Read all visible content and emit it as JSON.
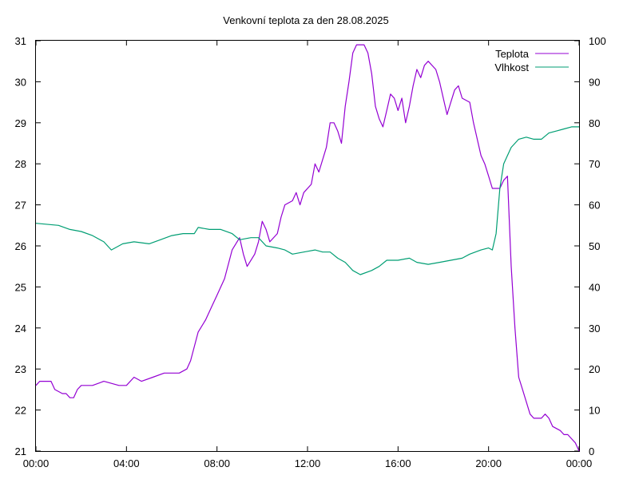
{
  "chart_data": {
    "type": "line",
    "title": "Venkovní teplota za den 28.08.2025",
    "x_ticks": [
      "00:00",
      "04:00",
      "08:00",
      "12:00",
      "16:00",
      "20:00",
      "00:00"
    ],
    "xlim": [
      "00:00",
      "24:00"
    ],
    "y_left": {
      "ylim": [
        21,
        31
      ],
      "ticks": [
        "21",
        "22",
        "23",
        "24",
        "25",
        "26",
        "27",
        "28",
        "29",
        "30",
        "31"
      ]
    },
    "y_right": {
      "ylim": [
        0,
        100
      ],
      "ticks": [
        "0",
        "10",
        "20",
        "30",
        "40",
        "50",
        "60",
        "70",
        "80",
        "90",
        "100"
      ]
    },
    "legend_position": "top-right",
    "grid": false,
    "series": [
      {
        "name": "Teplota",
        "axis": "left",
        "color": "#9400d3",
        "points": [
          [
            "00:00",
            22.6
          ],
          [
            "00:10",
            22.7
          ],
          [
            "00:40",
            22.7
          ],
          [
            "00:50",
            22.5
          ],
          [
            "01:10",
            22.4
          ],
          [
            "01:20",
            22.4
          ],
          [
            "01:30",
            22.3
          ],
          [
            "01:40",
            22.3
          ],
          [
            "01:50",
            22.5
          ],
          [
            "02:00",
            22.6
          ],
          [
            "02:30",
            22.6
          ],
          [
            "03:00",
            22.7
          ],
          [
            "03:40",
            22.6
          ],
          [
            "04:00",
            22.6
          ],
          [
            "04:20",
            22.8
          ],
          [
            "04:40",
            22.7
          ],
          [
            "05:10",
            22.8
          ],
          [
            "05:40",
            22.9
          ],
          [
            "06:20",
            22.9
          ],
          [
            "06:40",
            23.0
          ],
          [
            "06:50",
            23.2
          ],
          [
            "07:10",
            23.9
          ],
          [
            "07:30",
            24.2
          ],
          [
            "07:40",
            24.4
          ],
          [
            "08:00",
            24.8
          ],
          [
            "08:20",
            25.2
          ],
          [
            "08:40",
            25.9
          ],
          [
            "09:00",
            26.2
          ],
          [
            "09:10",
            25.8
          ],
          [
            "09:20",
            25.5
          ],
          [
            "09:40",
            25.8
          ],
          [
            "09:50",
            26.1
          ],
          [
            "10:00",
            26.6
          ],
          [
            "10:10",
            26.4
          ],
          [
            "10:20",
            26.1
          ],
          [
            "10:40",
            26.3
          ],
          [
            "10:50",
            26.7
          ],
          [
            "11:00",
            27.0
          ],
          [
            "11:20",
            27.1
          ],
          [
            "11:30",
            27.3
          ],
          [
            "11:40",
            27.0
          ],
          [
            "11:50",
            27.3
          ],
          [
            "12:10",
            27.5
          ],
          [
            "12:20",
            28.0
          ],
          [
            "12:30",
            27.8
          ],
          [
            "12:50",
            28.4
          ],
          [
            "13:00",
            29.0
          ],
          [
            "13:10",
            29.0
          ],
          [
            "13:20",
            28.8
          ],
          [
            "13:30",
            28.5
          ],
          [
            "13:40",
            29.4
          ],
          [
            "13:50",
            30.0
          ],
          [
            "14:00",
            30.7
          ],
          [
            "14:10",
            30.9
          ],
          [
            "14:30",
            30.9
          ],
          [
            "14:40",
            30.7
          ],
          [
            "14:50",
            30.2
          ],
          [
            "15:00",
            29.4
          ],
          [
            "15:10",
            29.1
          ],
          [
            "15:20",
            28.9
          ],
          [
            "15:30",
            29.3
          ],
          [
            "15:40",
            29.7
          ],
          [
            "15:50",
            29.6
          ],
          [
            "16:00",
            29.3
          ],
          [
            "16:10",
            29.6
          ],
          [
            "16:20",
            29.0
          ],
          [
            "16:30",
            29.4
          ],
          [
            "16:40",
            29.9
          ],
          [
            "16:50",
            30.3
          ],
          [
            "17:00",
            30.1
          ],
          [
            "17:10",
            30.4
          ],
          [
            "17:20",
            30.5
          ],
          [
            "17:40",
            30.3
          ],
          [
            "17:50",
            30.0
          ],
          [
            "18:00",
            29.6
          ],
          [
            "18:10",
            29.2
          ],
          [
            "18:20",
            29.5
          ],
          [
            "18:30",
            29.8
          ],
          [
            "18:40",
            29.9
          ],
          [
            "18:50",
            29.6
          ],
          [
            "19:10",
            29.5
          ],
          [
            "19:20",
            29.0
          ],
          [
            "19:40",
            28.2
          ],
          [
            "19:50",
            28.0
          ],
          [
            "20:00",
            27.7
          ],
          [
            "20:10",
            27.4
          ],
          [
            "20:20",
            27.4
          ],
          [
            "20:30",
            27.4
          ],
          [
            "20:40",
            27.6
          ],
          [
            "20:50",
            27.7
          ],
          [
            "21:00",
            25.5
          ],
          [
            "21:10",
            24.0
          ],
          [
            "21:20",
            22.8
          ],
          [
            "21:30",
            22.5
          ],
          [
            "21:40",
            22.2
          ],
          [
            "21:50",
            21.9
          ],
          [
            "22:00",
            21.8
          ],
          [
            "22:20",
            21.8
          ],
          [
            "22:30",
            21.9
          ],
          [
            "22:40",
            21.8
          ],
          [
            "22:50",
            21.6
          ],
          [
            "23:10",
            21.5
          ],
          [
            "23:20",
            21.4
          ],
          [
            "23:30",
            21.4
          ],
          [
            "23:40",
            21.3
          ],
          [
            "23:50",
            21.2
          ],
          [
            "24:00",
            21.0
          ]
        ]
      },
      {
        "name": "Vlhkost",
        "axis": "right",
        "color": "#009e73",
        "points": [
          [
            "00:00",
            55.5
          ],
          [
            "01:00",
            55.0
          ],
          [
            "01:30",
            54.0
          ],
          [
            "02:00",
            53.5
          ],
          [
            "02:30",
            52.5
          ],
          [
            "03:00",
            51.0
          ],
          [
            "03:20",
            49.0
          ],
          [
            "03:50",
            50.5
          ],
          [
            "04:20",
            51.0
          ],
          [
            "05:00",
            50.5
          ],
          [
            "05:30",
            51.5
          ],
          [
            "06:00",
            52.5
          ],
          [
            "06:30",
            53.0
          ],
          [
            "07:00",
            53.0
          ],
          [
            "07:10",
            54.5
          ],
          [
            "07:40",
            54.0
          ],
          [
            "08:10",
            54.0
          ],
          [
            "08:40",
            53.0
          ],
          [
            "09:00",
            51.5
          ],
          [
            "09:30",
            52.0
          ],
          [
            "09:50",
            52.0
          ],
          [
            "10:10",
            50.0
          ],
          [
            "10:40",
            49.5
          ],
          [
            "11:00",
            49.0
          ],
          [
            "11:20",
            48.0
          ],
          [
            "11:50",
            48.5
          ],
          [
            "12:20",
            49.0
          ],
          [
            "12:40",
            48.5
          ],
          [
            "13:00",
            48.5
          ],
          [
            "13:20",
            47.0
          ],
          [
            "13:40",
            46.0
          ],
          [
            "14:00",
            44.0
          ],
          [
            "14:20",
            43.0
          ],
          [
            "14:50",
            44.0
          ],
          [
            "15:10",
            45.0
          ],
          [
            "15:30",
            46.5
          ],
          [
            "16:00",
            46.5
          ],
          [
            "16:30",
            47.0
          ],
          [
            "16:50",
            46.0
          ],
          [
            "17:20",
            45.5
          ],
          [
            "17:50",
            46.0
          ],
          [
            "18:20",
            46.5
          ],
          [
            "18:50",
            47.0
          ],
          [
            "19:10",
            48.0
          ],
          [
            "19:40",
            49.0
          ],
          [
            "20:00",
            49.5
          ],
          [
            "20:10",
            49.0
          ],
          [
            "20:20",
            53.0
          ],
          [
            "20:30",
            64.0
          ],
          [
            "20:40",
            70.0
          ],
          [
            "21:00",
            74.0
          ],
          [
            "21:20",
            76.0
          ],
          [
            "21:40",
            76.5
          ],
          [
            "22:00",
            76.0
          ],
          [
            "22:20",
            76.0
          ],
          [
            "22:40",
            77.5
          ],
          [
            "23:00",
            78.0
          ],
          [
            "23:20",
            78.5
          ],
          [
            "23:40",
            79.0
          ],
          [
            "24:00",
            79.0
          ]
        ]
      }
    ]
  }
}
